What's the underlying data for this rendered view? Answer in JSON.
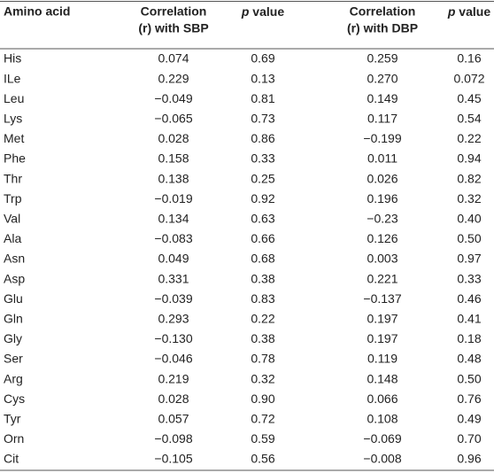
{
  "table": {
    "header": [
      [
        "Amino acid"
      ],
      [
        "Correlation",
        "(r) with SBP"
      ],
      [
        {
          "italic": "p"
        },
        " value"
      ],
      [
        "Correlation",
        "(r) with DBP"
      ],
      [
        {
          "italic": "p"
        },
        " value"
      ]
    ],
    "rows": [
      [
        "His",
        "0.074",
        "0.69",
        "0.259",
        "0.16"
      ],
      [
        "ILe",
        "0.229",
        "0.13",
        "0.270",
        "0.072"
      ],
      [
        "Leu",
        "−0.049",
        "0.81",
        "0.149",
        "0.45"
      ],
      [
        "Lys",
        "−0.065",
        "0.73",
        "0.117",
        "0.54"
      ],
      [
        "Met",
        "0.028",
        "0.86",
        "−0.199",
        "0.22"
      ],
      [
        "Phe",
        "0.158",
        "0.33",
        "0.011",
        "0.94"
      ],
      [
        "Thr",
        "0.138",
        "0.25",
        "0.026",
        "0.82"
      ],
      [
        "Trp",
        "−0.019",
        "0.92",
        "0.196",
        "0.32"
      ],
      [
        "Val",
        "0.134",
        "0.63",
        "−0.23",
        "0.40"
      ],
      [
        "Ala",
        "−0.083",
        "0.66",
        "0.126",
        "0.50"
      ],
      [
        "Asn",
        "0.049",
        "0.68",
        "0.003",
        "0.97"
      ],
      [
        "Asp",
        "0.331",
        "0.38",
        "0.221",
        "0.33"
      ],
      [
        "Glu",
        "−0.039",
        "0.83",
        "−0.137",
        "0.46"
      ],
      [
        "Gln",
        "0.293",
        "0.22",
        "0.197",
        "0.41"
      ],
      [
        "Gly",
        "−0.130",
        "0.38",
        "0.197",
        "0.18"
      ],
      [
        "Ser",
        "−0.046",
        "0.78",
        "0.119",
        "0.48"
      ],
      [
        "Arg",
        "0.219",
        "0.32",
        "0.148",
        "0.50"
      ],
      [
        "Cys",
        "0.028",
        "0.90",
        "0.066",
        "0.76"
      ],
      [
        "Tyr",
        "0.057",
        "0.72",
        "0.108",
        "0.49"
      ],
      [
        "Orn",
        "−0.098",
        "0.59",
        "−0.069",
        "0.70"
      ],
      [
        "Cit",
        "−0.105",
        "0.56",
        "−0.008",
        "0.96"
      ]
    ]
  }
}
